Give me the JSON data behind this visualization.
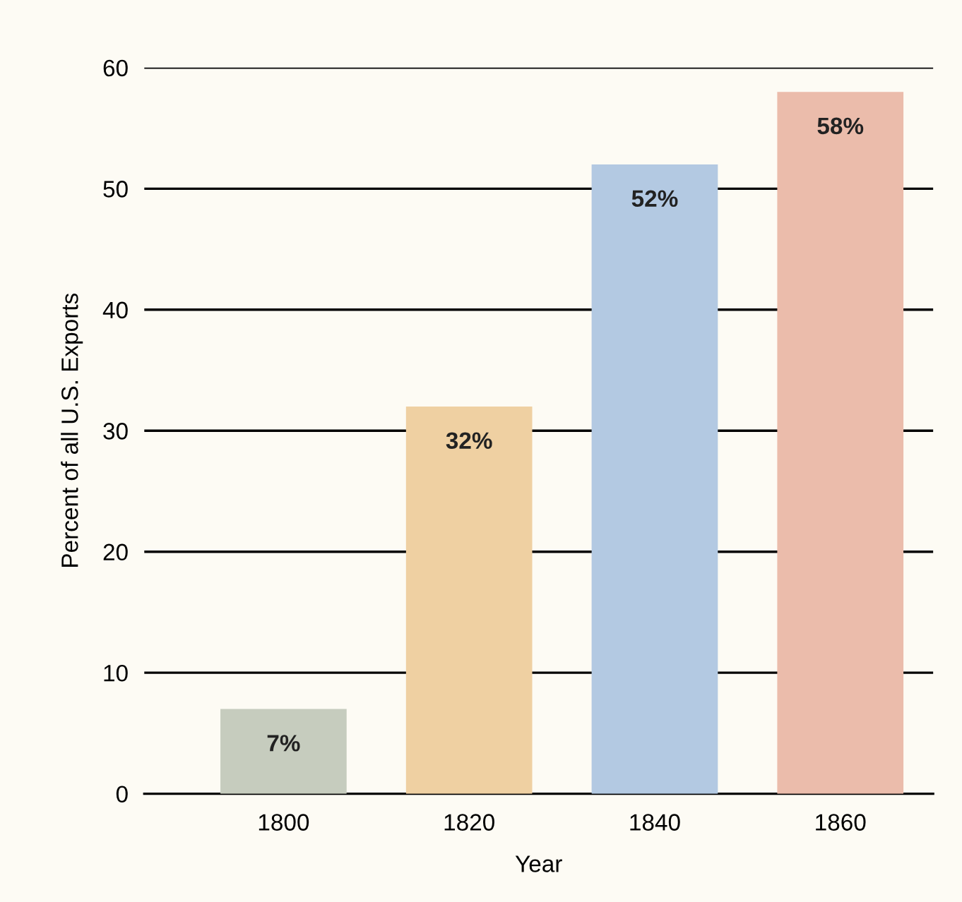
{
  "chart_data": {
    "type": "bar",
    "xlabel": "Year",
    "ylabel": "Percent of all U.S. Exports",
    "categories": [
      "1800",
      "1820",
      "1840",
      "1860"
    ],
    "values": [
      7,
      32,
      52,
      58
    ],
    "colors": [
      "#c6ccbe",
      "#efd0a2",
      "#b3c9e2",
      "#ebbcab"
    ],
    "value_labels": [
      "7%",
      "32%",
      "52%",
      "58%"
    ],
    "ylim": [
      0,
      60
    ],
    "yticks": [
      0,
      10,
      20,
      30,
      40,
      50,
      60
    ],
    "grid": "y",
    "legend": false
  }
}
